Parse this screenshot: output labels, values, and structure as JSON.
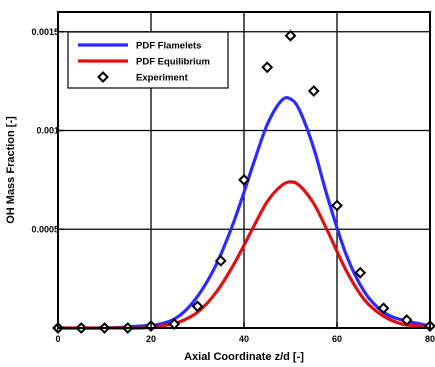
{
  "chart_data": {
    "type": "line",
    "xlabel": "Axial Coordinate z/d [-]",
    "ylabel": "OH Mass Fraction [-]",
    "xlim": [
      0,
      80
    ],
    "ylim": [
      0,
      0.0016
    ],
    "xticks": [
      0,
      20,
      40,
      60,
      80
    ],
    "xtick_labels": [
      "0",
      "20",
      "40",
      "60",
      "80"
    ],
    "yticks": [
      0,
      0.0005,
      0.001,
      0.0015
    ],
    "ytick_labels": [
      "0",
      "0.0005",
      "0.001",
      "0.0015"
    ],
    "grid": true,
    "legend_position": "top-left",
    "series": [
      {
        "name": "PDF Flamelets",
        "kind": "line",
        "color": "#2b2bff",
        "x": [
          0,
          10,
          18,
          22,
          26,
          30,
          34,
          38,
          42,
          45,
          48,
          50,
          52,
          55,
          58,
          62,
          66,
          70,
          74,
          78,
          80
        ],
        "y": [
          0,
          0,
          1e-05,
          2e-05,
          6e-05,
          0.00016,
          0.00032,
          0.00055,
          0.00083,
          0.00103,
          0.00115,
          0.00116,
          0.0011,
          0.00091,
          0.00066,
          0.00037,
          0.00018,
          8e-05,
          4e-05,
          2e-05,
          1e-05
        ]
      },
      {
        "name": "PDF Equilibrium",
        "kind": "line",
        "color": "#dd1111",
        "x": [
          0,
          10,
          18,
          22,
          26,
          30,
          34,
          38,
          42,
          45,
          48,
          50,
          52,
          55,
          58,
          62,
          66,
          70,
          74,
          78,
          80
        ],
        "y": [
          0,
          0,
          0,
          1e-05,
          3e-05,
          8e-05,
          0.00018,
          0.00033,
          0.00051,
          0.00064,
          0.00072,
          0.00074,
          0.00072,
          0.00063,
          0.00049,
          0.00029,
          0.00014,
          6e-05,
          2e-05,
          1e-05,
          0
        ]
      },
      {
        "name": "Experiment",
        "kind": "scatter",
        "marker": "diamond",
        "color": "#000000",
        "x": [
          0,
          5,
          10,
          15,
          20,
          25,
          30,
          35,
          40,
          45,
          50,
          55,
          60,
          65,
          70,
          75,
          80
        ],
        "y": [
          0,
          0,
          0,
          0,
          1e-05,
          2e-05,
          0.00011,
          0.00034,
          0.00075,
          0.00132,
          0.00148,
          0.0012,
          0.00062,
          0.00028,
          0.0001,
          4e-05,
          1e-05
        ]
      }
    ]
  }
}
